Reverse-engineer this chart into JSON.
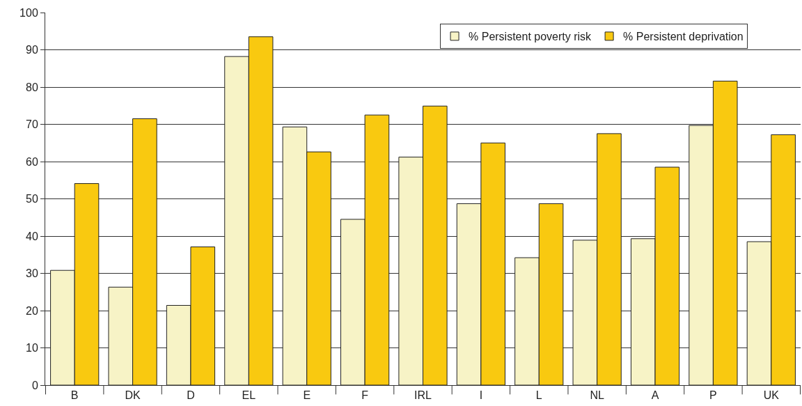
{
  "chart_data": {
    "type": "bar",
    "categories": [
      "B",
      "DK",
      "D",
      "EL",
      "E",
      "F",
      "IRL",
      "I",
      "L",
      "NL",
      "A",
      "P",
      "UK"
    ],
    "series": [
      {
        "name": "% Persistent poverty risk",
        "color": "#f7f3c6",
        "values": [
          30.8,
          26.3,
          21.4,
          88.2,
          69.3,
          44.5,
          61.2,
          48.7,
          34.2,
          38.9,
          39.3,
          69.7,
          38.5
        ]
      },
      {
        "name": "% Persistent deprivation",
        "color": "#f9c910",
        "values": [
          54.1,
          71.5,
          37.1,
          93.5,
          62.6,
          72.5,
          74.9,
          65.0,
          48.7,
          67.5,
          58.5,
          81.6,
          67.2
        ]
      }
    ],
    "ylim": [
      0,
      100
    ],
    "yticks": [
      0,
      10,
      20,
      30,
      40,
      50,
      60,
      70,
      80,
      90,
      100
    ],
    "grid": "y",
    "legend": "top right"
  }
}
